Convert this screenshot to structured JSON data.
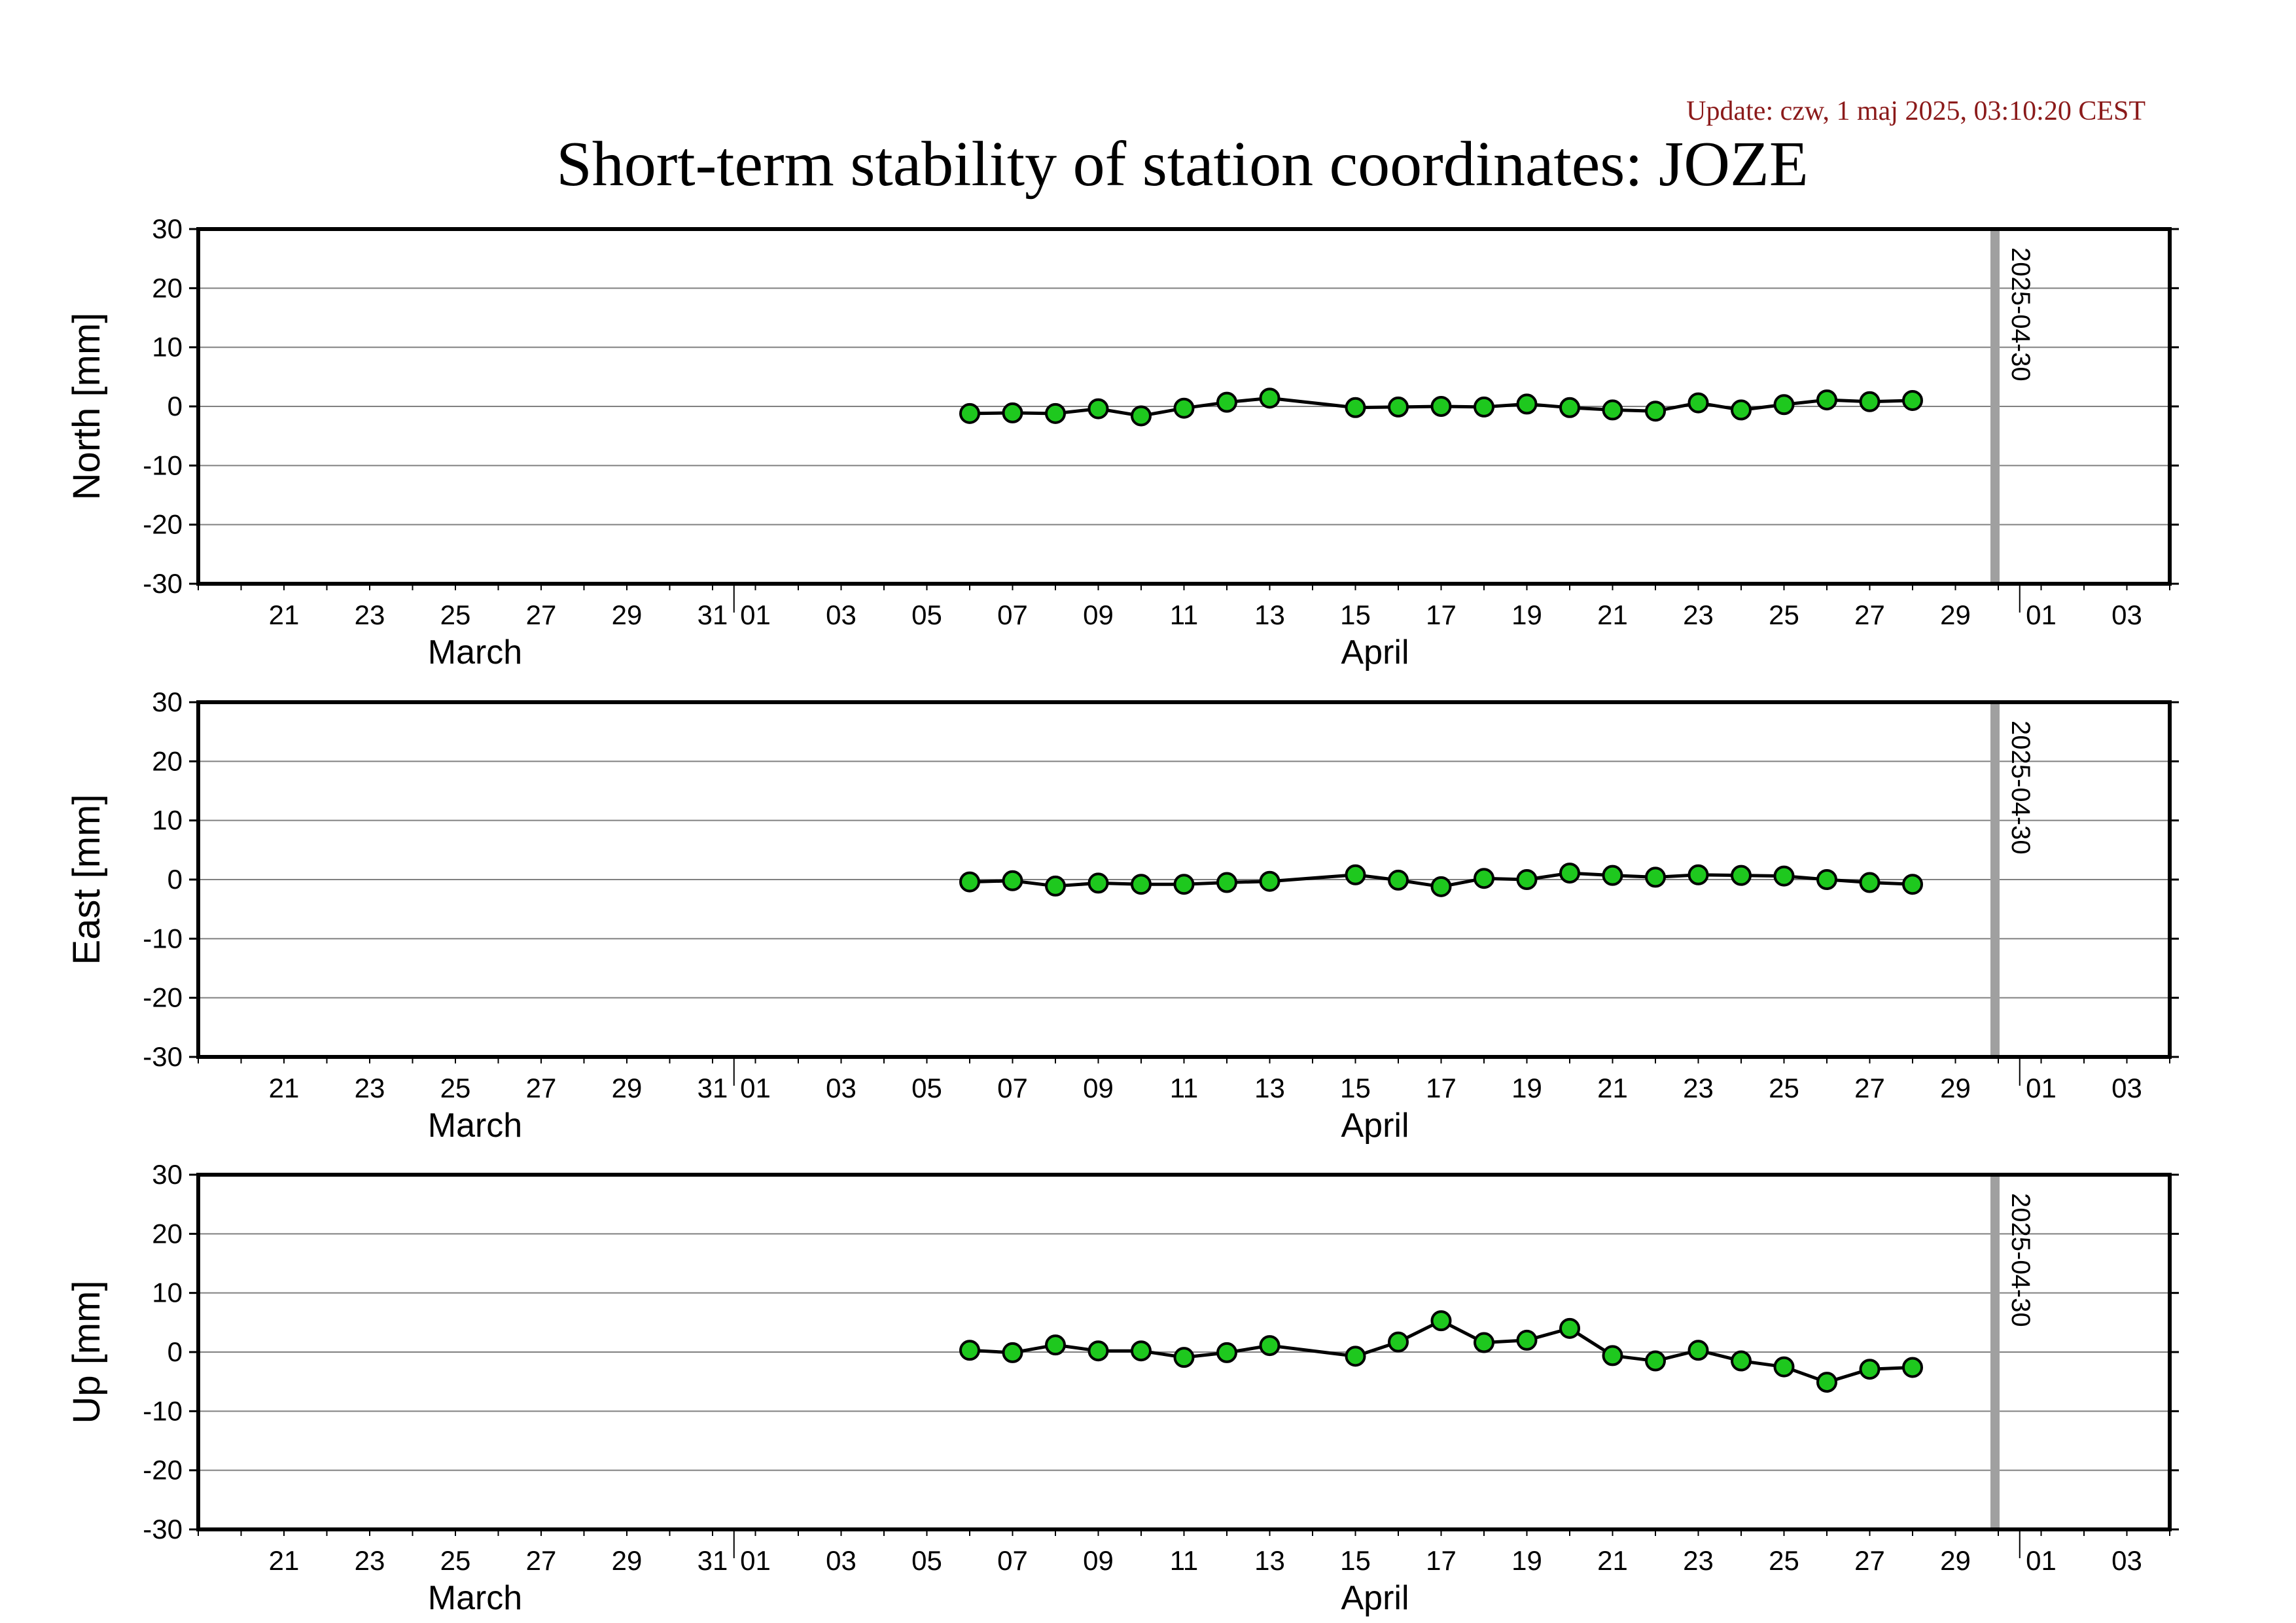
{
  "update_text": "Update: czw, 1 maj 2025, 03:10:20 CEST",
  "title": "Short-term stability of station coordinates: JOZE",
  "colors": {
    "update_text": "#8b1a1a",
    "marker_fill": "#1ec81e",
    "marker_stroke": "#000000",
    "line": "#000000",
    "grid": "#808080",
    "frame": "#000000",
    "marker_line": "#a0a0a0"
  },
  "chart_data": [
    {
      "type": "line",
      "ylabel": "North [mm]",
      "ylim": [
        -30,
        30
      ],
      "yticks": [
        -30,
        -20,
        -10,
        0,
        10,
        20,
        30
      ],
      "grid": "horizontal",
      "xlim": [
        "2025-03-19",
        "2025-05-04"
      ],
      "x_tick_labels": [
        "21",
        "23",
        "25",
        "27",
        "29",
        "31",
        "01",
        "03",
        "05",
        "07",
        "09",
        "11",
        "13",
        "15",
        "17",
        "19",
        "21",
        "23",
        "25",
        "27",
        "29",
        "01",
        "03"
      ],
      "month_labels": [
        "March",
        "April"
      ],
      "marker_date_label": "2025-04-30",
      "series": [
        {
          "x": [
            "2025-04-06",
            "2025-04-07",
            "2025-04-08",
            "2025-04-09",
            "2025-04-10",
            "2025-04-11",
            "2025-04-12",
            "2025-04-13",
            "2025-04-15",
            "2025-04-16",
            "2025-04-17",
            "2025-04-18",
            "2025-04-19",
            "2025-04-20",
            "2025-04-21",
            "2025-04-22",
            "2025-04-23",
            "2025-04-24",
            "2025-04-25",
            "2025-04-26",
            "2025-04-27",
            "2025-04-28"
          ],
          "values": [
            -1.2,
            -1.1,
            -1.2,
            -0.4,
            -1.6,
            -0.3,
            0.7,
            1.4,
            -0.2,
            -0.1,
            0.0,
            -0.1,
            0.4,
            -0.2,
            -0.6,
            -0.8,
            0.6,
            -0.6,
            0.3,
            1.1,
            0.8,
            1.0
          ]
        }
      ]
    },
    {
      "type": "line",
      "ylabel": "East [mm]",
      "ylim": [
        -30,
        30
      ],
      "yticks": [
        -30,
        -20,
        -10,
        0,
        10,
        20,
        30
      ],
      "grid": "horizontal",
      "xlim": [
        "2025-03-19",
        "2025-05-04"
      ],
      "x_tick_labels": [
        "21",
        "23",
        "25",
        "27",
        "29",
        "31",
        "01",
        "03",
        "05",
        "07",
        "09",
        "11",
        "13",
        "15",
        "17",
        "19",
        "21",
        "23",
        "25",
        "27",
        "29",
        "01",
        "03"
      ],
      "month_labels": [
        "March",
        "April"
      ],
      "marker_date_label": "2025-04-30",
      "series": [
        {
          "x": [
            "2025-04-06",
            "2025-04-07",
            "2025-04-08",
            "2025-04-09",
            "2025-04-10",
            "2025-04-11",
            "2025-04-12",
            "2025-04-13",
            "2025-04-15",
            "2025-04-16",
            "2025-04-17",
            "2025-04-18",
            "2025-04-19",
            "2025-04-20",
            "2025-04-21",
            "2025-04-22",
            "2025-04-23",
            "2025-04-24",
            "2025-04-25",
            "2025-04-26",
            "2025-04-27",
            "2025-04-28"
          ],
          "values": [
            -0.4,
            -0.2,
            -1.1,
            -0.6,
            -0.8,
            -0.8,
            -0.5,
            -0.3,
            0.8,
            -0.1,
            -1.2,
            0.2,
            0.0,
            1.1,
            0.7,
            0.4,
            0.8,
            0.7,
            0.6,
            0.0,
            -0.5,
            -0.8
          ]
        }
      ]
    },
    {
      "type": "line",
      "ylabel": "Up [mm]",
      "ylim": [
        -30,
        30
      ],
      "yticks": [
        -30,
        -20,
        -10,
        0,
        10,
        20,
        30
      ],
      "grid": "horizontal",
      "xlim": [
        "2025-03-19",
        "2025-05-04"
      ],
      "x_tick_labels": [
        "21",
        "23",
        "25",
        "27",
        "29",
        "31",
        "01",
        "03",
        "05",
        "07",
        "09",
        "11",
        "13",
        "15",
        "17",
        "19",
        "21",
        "23",
        "25",
        "27",
        "29",
        "01",
        "03"
      ],
      "month_labels": [
        "March",
        "April"
      ],
      "marker_date_label": "2025-04-30",
      "series": [
        {
          "x": [
            "2025-04-06",
            "2025-04-07",
            "2025-04-08",
            "2025-04-09",
            "2025-04-10",
            "2025-04-11",
            "2025-04-12",
            "2025-04-13",
            "2025-04-15",
            "2025-04-16",
            "2025-04-17",
            "2025-04-18",
            "2025-04-19",
            "2025-04-20",
            "2025-04-21",
            "2025-04-22",
            "2025-04-23",
            "2025-04-24",
            "2025-04-25",
            "2025-04-26",
            "2025-04-27",
            "2025-04-28"
          ],
          "values": [
            0.3,
            -0.1,
            1.2,
            0.2,
            0.2,
            -0.9,
            -0.1,
            1.1,
            -0.7,
            1.7,
            5.3,
            1.6,
            2.0,
            4.0,
            -0.6,
            -1.5,
            0.3,
            -1.5,
            -2.5,
            -5.1,
            -2.9,
            -2.6
          ]
        }
      ]
    }
  ]
}
